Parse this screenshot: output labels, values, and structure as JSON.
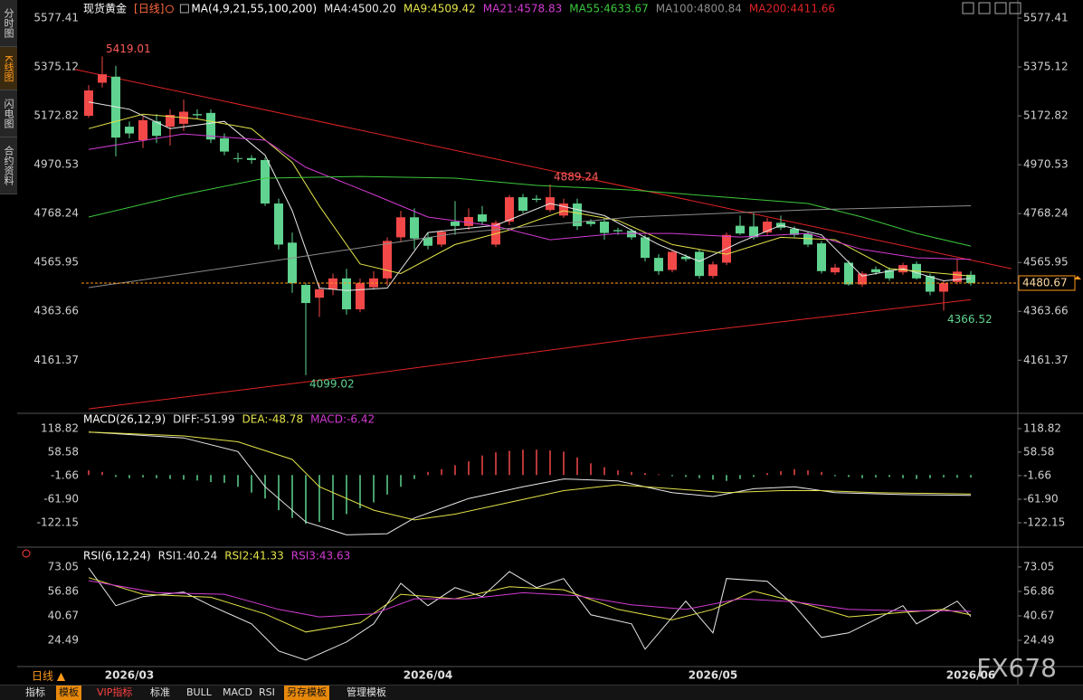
{
  "sidebar": {
    "tabs": [
      "分时图",
      "K线图",
      "闪电图",
      "合约资料"
    ]
  },
  "toolbar": {
    "items": [
      "指标",
      "模板",
      "VIP指标",
      "标准",
      "BULL",
      "MACD",
      "RSI",
      "另存模板",
      "管理模板"
    ]
  },
  "period": "日线 ▲",
  "watermark": "FX678",
  "chart_data": [
    {
      "type": "candlestick",
      "title": "现货黄金",
      "subtitle": "[日线]",
      "indicator": "MA(4,9,21,55,100,200)",
      "categories": [
        null,
        null,
        null,
        "2026/03",
        null,
        null,
        null,
        null,
        null,
        null,
        null,
        null,
        null,
        null,
        null,
        null,
        null,
        null,
        null,
        null,
        null,
        null,
        null,
        null,
        null,
        "2026/04",
        null,
        null,
        null,
        null,
        null,
        null,
        null,
        null,
        null,
        null,
        null,
        null,
        null,
        null,
        null,
        null,
        null,
        null,
        null,
        null,
        "2026/05",
        null,
        null,
        null,
        null,
        null,
        null,
        null,
        null,
        null,
        null,
        null,
        null,
        null,
        null,
        null,
        null,
        null,
        null,
        "2026/06"
      ],
      "open": [
        5173,
        5310,
        5335,
        5128,
        5072,
        5150,
        5128,
        5140,
        5180,
        5185,
        5080,
        4998,
        4998,
        4990,
        4810,
        4648,
        4473,
        4420,
        4455,
        4500,
        4372,
        4463,
        4500,
        4670,
        4753,
        4670,
        4640,
        4735,
        4717,
        4765,
        4640,
        4735,
        4836,
        4830,
        4783,
        4760,
        4810,
        4735,
        4735,
        4700,
        4697,
        4670,
        4585,
        4535,
        4590,
        4610,
        4510,
        4565,
        4718,
        4715,
        4690,
        4730,
        4705,
        4685,
        4645,
        4525,
        4565,
        4475,
        4538,
        4535,
        4525,
        4560,
        4510,
        4445,
        4485,
        4515
      ],
      "high": [
        5300,
        5419.01,
        5380,
        5150,
        5170,
        5180,
        5200,
        5240,
        5200,
        5200,
        5100,
        5020,
        5010,
        5000,
        4830,
        4690,
        4480,
        4480,
        4520,
        4540,
        4500,
        4530,
        4670,
        4780,
        4790,
        4690,
        4700,
        4820,
        4790,
        4800,
        4740,
        4845,
        4850,
        4845,
        4889.24,
        4830,
        4830,
        4745,
        4750,
        4710,
        4705,
        4680,
        4600,
        4620,
        4600,
        4620,
        4570,
        4690,
        4760,
        4770,
        4750,
        4760,
        4715,
        4695,
        4655,
        4560,
        4575,
        4530,
        4550,
        4545,
        4565,
        4570,
        4520,
        4490,
        4580,
        4530
      ],
      "low": [
        5165,
        5290,
        5005,
        5080,
        5040,
        5060,
        5050,
        5110,
        5160,
        5060,
        5010,
        4980,
        4975,
        4800,
        4620,
        4440,
        4099.02,
        4340,
        4430,
        4350,
        4360,
        4455,
        4470,
        4650,
        4620,
        4620,
        4630,
        4680,
        4700,
        4720,
        4630,
        4720,
        4770,
        4815,
        4775,
        4750,
        4700,
        4715,
        4660,
        4680,
        4660,
        4570,
        4515,
        4525,
        4570,
        4500,
        4500,
        4555,
        4680,
        4660,
        4680,
        4700,
        4670,
        4630,
        4520,
        4515,
        4470,
        4465,
        4515,
        4490,
        4515,
        4495,
        4430,
        4366.52,
        4475,
        4470
      ],
      "close": [
        5278,
        5345,
        5083,
        5100,
        5155,
        5090,
        5177,
        5190,
        5175,
        5075,
        5025,
        4995,
        4990,
        4810,
        4640,
        4480,
        4398,
        4455,
        4500,
        4372,
        4480,
        4500,
        4655,
        4753,
        4665,
        4635,
        4693,
        4717,
        4754,
        4735,
        4730,
        4836,
        4780,
        4825,
        4836,
        4810,
        4716,
        4725,
        4688,
        4695,
        4670,
        4585,
        4530,
        4610,
        4580,
        4510,
        4558,
        4680,
        4686,
        4670,
        4735,
        4710,
        4680,
        4640,
        4530,
        4545,
        4475,
        4520,
        4525,
        4500,
        4555,
        4500,
        4445,
        4480,
        4528,
        4480.67
      ],
      "up_color": "#f24848",
      "down_color": "#5fd38f",
      "series": [
        {
          "name": "MA4:4500.20",
          "color": "#e8e8e8",
          "x": [
            0,
            3,
            6,
            10,
            13,
            15,
            17,
            19,
            22,
            25,
            30,
            34,
            38,
            42,
            45,
            48,
            51,
            54,
            57,
            60,
            63,
            65
          ],
          "values": [
            5230,
            5200,
            5120,
            5150,
            5010,
            4780,
            4460,
            4450,
            4460,
            4690,
            4720,
            4810,
            4760,
            4640,
            4570,
            4650,
            4720,
            4680,
            4510,
            4540,
            4490,
            4500.2
          ]
        },
        {
          "name": "MA9:4509.42",
          "color": "#e3e34a",
          "x": [
            0,
            4,
            8,
            12,
            15,
            17,
            20,
            23,
            27,
            31,
            35,
            39,
            43,
            47,
            51,
            55,
            59,
            63,
            65
          ],
          "values": [
            5120,
            5180,
            5160,
            5120,
            4980,
            4800,
            4560,
            4520,
            4640,
            4700,
            4780,
            4740,
            4640,
            4600,
            4670,
            4660,
            4540,
            4520,
            4509.42
          ]
        },
        {
          "name": "MA21:4578.83",
          "color": "#d23bd2",
          "x": [
            0,
            7,
            13,
            16,
            21,
            25,
            30,
            34,
            39,
            43,
            48,
            53,
            57,
            61,
            65
          ],
          "values": [
            5034,
            5098,
            5072,
            4960,
            4847,
            4754,
            4716,
            4660,
            4686,
            4686,
            4671,
            4686,
            4620,
            4585,
            4578.83
          ]
        },
        {
          "name": "MA55:4633.67",
          "color": "#3cc83c",
          "x": [
            0,
            7,
            13,
            20,
            27,
            33,
            40,
            47,
            53,
            57,
            61,
            65
          ],
          "values": [
            4754,
            4847,
            4915,
            4922,
            4915,
            4885,
            4866,
            4836,
            4810,
            4754,
            4686,
            4633.67
          ]
        },
        {
          "name": "MA100:4800.84",
          "color": "#8c8c8c",
          "x": [
            0,
            13,
            27,
            40,
            53,
            65
          ],
          "values": [
            4462,
            4567,
            4686,
            4754,
            4784,
            4800.84
          ]
        },
        {
          "name": "MA200:4411.66",
          "color": "#e02424",
          "x": [
            0,
            20,
            40,
            65
          ],
          "values": [
            3960,
            4099,
            4248,
            4411.66
          ]
        }
      ],
      "trendline": {
        "color": "#e02424",
        "x": [
          -1,
          68
        ],
        "values": [
          5365,
          4540
        ]
      },
      "annotations": [
        {
          "x": 1,
          "value": 5419.01,
          "position": "above",
          "color": "#ff5a5a"
        },
        {
          "x": 34,
          "value": 4889.24,
          "position": "above",
          "color": "#ff5a5a"
        },
        {
          "x": 16,
          "value": 4099.02,
          "position": "below",
          "color": "#5fd38f"
        },
        {
          "x": 63,
          "value": 4366.52,
          "position": "below",
          "color": "#5fd38f"
        }
      ],
      "last_price_color": "#ff9a1a",
      "ylim": [
        3949,
        5615
      ],
      "yticks": [
        5577.41,
        5375.12,
        5172.82,
        4970.53,
        4768.24,
        4565.95,
        4363.66,
        4161.37
      ]
    },
    {
      "type": "macd",
      "title": "MACD(26,12,9)",
      "histogram": [
        12,
        8,
        -5,
        -8,
        -6,
        -8,
        -10,
        -12,
        -14,
        -18,
        -20,
        -30,
        -45,
        -60,
        -90,
        -110,
        -125,
        -120,
        -115,
        -100,
        -85,
        -70,
        -50,
        -30,
        -10,
        8,
        15,
        25,
        35,
        50,
        58,
        62,
        65,
        65,
        63,
        60,
        45,
        30,
        20,
        12,
        8,
        5,
        2,
        -3,
        -5,
        -8,
        -12,
        -15,
        -10,
        -5,
        5,
        10,
        15,
        12,
        8,
        -3,
        -5,
        -8,
        -6,
        -5,
        -8,
        -10,
        -8,
        -6,
        -7,
        -6.42
      ],
      "histogram_name": "MACD:-6.42",
      "histogram_name_color": "#d23bd2",
      "up_color": "#f24848",
      "down_color": "#5fd38f",
      "series": [
        {
          "name": "DIFF:-51.99",
          "color": "#e8e8e8",
          "x": [
            0,
            7,
            11,
            13,
            16,
            19,
            22,
            24,
            28,
            32,
            35,
            39,
            43,
            46,
            49,
            52,
            55,
            60,
            65
          ],
          "values": [
            110,
            95,
            60,
            -30,
            -120,
            -153,
            -150,
            -110,
            -60,
            -30,
            -10,
            -15,
            -45,
            -55,
            -35,
            -30,
            -45,
            -50,
            -51.99
          ]
        },
        {
          "name": "DEA:-48.78",
          "color": "#e3e34a",
          "x": [
            0,
            7,
            11,
            15,
            17,
            21,
            24,
            27,
            31,
            35,
            39,
            43,
            47,
            51,
            54,
            58,
            65
          ],
          "values": [
            110,
            100,
            85,
            40,
            -30,
            -90,
            -115,
            -100,
            -70,
            -40,
            -25,
            -35,
            -45,
            -40,
            -40,
            -45,
            -48.78
          ]
        }
      ],
      "ylim": [
        -173,
        151
      ],
      "yticks": [
        118.82,
        58.58,
        -1.66,
        {
          "value": -61.9,
          "label": "-61.90"
        },
        -122.15
      ]
    },
    {
      "type": "line",
      "title": "RSI(6,12,24)",
      "series": [
        {
          "name": "RSI1:40.24",
          "color": "#e8e8e8",
          "x": [
            0,
            2,
            4,
            7,
            9,
            12,
            14,
            16,
            19,
            21,
            23,
            25,
            27,
            29,
            31,
            33,
            35,
            37,
            40,
            41,
            44,
            46,
            47,
            50,
            52,
            54,
            56,
            58,
            60,
            61,
            64,
            65
          ],
          "values": [
            72.5,
            47.4,
            53.4,
            56.4,
            47.4,
            35.4,
            17.4,
            11.4,
            23.4,
            35.4,
            62.2,
            47.4,
            59.4,
            53.4,
            70,
            59.4,
            65.4,
            41.4,
            35.4,
            18.6,
            50.4,
            29.4,
            65.4,
            63.6,
            47.4,
            26.4,
            29.4,
            38.4,
            47.4,
            35.4,
            50.4,
            40.24
          ]
        },
        {
          "name": "RSI2:41.33",
          "color": "#e3e34a",
          "x": [
            0,
            4,
            9,
            13,
            16,
            20,
            23,
            27,
            31,
            35,
            39,
            43,
            46,
            49,
            53,
            56,
            60,
            63,
            65
          ],
          "values": [
            66,
            55,
            53,
            42,
            30,
            36,
            55,
            52,
            60,
            58,
            45,
            38,
            45,
            57,
            48,
            40,
            43,
            45,
            41.33
          ]
        },
        {
          "name": "RSI3:43.63",
          "color": "#d23bd2",
          "x": [
            0,
            5,
            10,
            14,
            17,
            21,
            24,
            28,
            32,
            36,
            40,
            44,
            48,
            52,
            56,
            60,
            63,
            65
          ],
          "values": [
            64,
            56,
            55,
            45,
            40,
            42,
            52,
            52,
            56,
            54,
            48,
            45,
            52,
            50,
            45,
            44,
            44,
            43.63
          ]
        }
      ],
      "ylim": [
        8.3,
        82
      ],
      "yticks": [
        73.05,
        56.86,
        40.67,
        24.49
      ]
    }
  ]
}
